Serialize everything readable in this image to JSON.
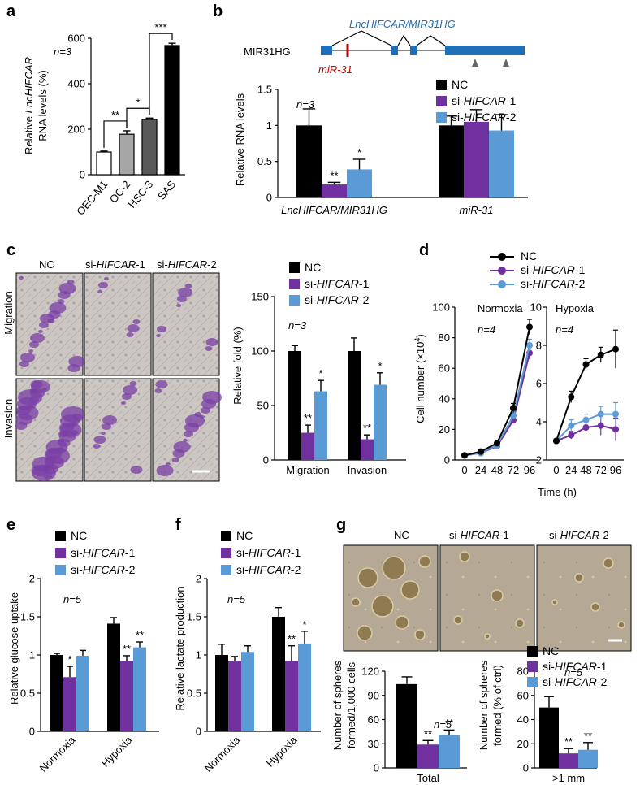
{
  "colors": {
    "black": "#000000",
    "purple": "#7030a0",
    "blue": "#5b9bd5",
    "gray_light": "#a6a6a6",
    "gray_mid": "#595959",
    "gene_blue": "#1f6fb8",
    "mir_red": "#c00000"
  },
  "panels": {
    "a": {
      "letter": "a"
    },
    "b": {
      "letter": "b"
    },
    "c": {
      "letter": "c"
    },
    "d": {
      "letter": "d"
    },
    "e": {
      "letter": "e"
    },
    "f": {
      "letter": "f"
    },
    "g": {
      "letter": "g"
    }
  },
  "legend": {
    "nc": "NC",
    "si1_prefix": "si-",
    "si1_gene": "HIFCAR",
    "si1_suffix": "-1",
    "si2_prefix": "si-",
    "si2_gene": "HIFCAR",
    "si2_suffix": "-2"
  },
  "panel_b": {
    "gene_label": "MIR31HG",
    "transcript_label": "LncHIFCAR/MIR31HG",
    "mir_label": "miR-31"
  },
  "panel_c": {
    "col_nc": "NC",
    "row_migration": "Migration",
    "row_invasion": "Invasion"
  },
  "panel_g": {
    "col_nc": "NC"
  },
  "chart_data": [
    {
      "id": "a",
      "type": "bar",
      "categories": [
        "OEC-M1",
        "OC-2",
        "HSC-3",
        "SAS"
      ],
      "values": [
        100,
        178,
        243,
        568
      ],
      "errors": [
        4,
        15,
        6,
        10
      ],
      "bar_colors": [
        "#ffffff",
        "#a6a6a6",
        "#595959",
        "#000000"
      ],
      "ylabel_line1_pre": "Relative ",
      "ylabel_line1_it": "LncHIFCAR",
      "ylabel_line2": "RNA levels (%)",
      "ylim": [
        0,
        600
      ],
      "yticks": [
        0,
        200,
        400,
        600
      ],
      "annotation": "n=3",
      "significance": [
        "**",
        "*",
        "***"
      ]
    },
    {
      "id": "b",
      "type": "bar",
      "groups": [
        "LncHIFCAR/MIR31HG",
        "miR-31"
      ],
      "series": [
        {
          "name": "NC",
          "values": [
            1.0,
            1.0
          ],
          "errors": [
            0.23,
            0.13
          ]
        },
        {
          "name": "si-HIFCAR-1",
          "values": [
            0.18,
            1.05
          ],
          "errors": [
            0.03,
            0.17
          ]
        },
        {
          "name": "si-HIFCAR-2",
          "values": [
            0.39,
            0.93
          ],
          "errors": [
            0.14,
            0.22
          ]
        }
      ],
      "ylabel": "Relative RNA levels",
      "ylim": [
        0,
        1.5
      ],
      "yticks": [
        0,
        0.5,
        1,
        1.5
      ],
      "ytick_labels": [
        "0",
        "0.5",
        "1",
        "1.5"
      ],
      "annotation": "n=3",
      "significance": [
        "**",
        "*"
      ]
    },
    {
      "id": "c",
      "type": "bar",
      "groups": [
        "Migration",
        "Invasion"
      ],
      "series": [
        {
          "name": "NC",
          "values": [
            100,
            100
          ],
          "errors": [
            5,
            12
          ]
        },
        {
          "name": "si-HIFCAR-1",
          "values": [
            25,
            19
          ],
          "errors": [
            7,
            4
          ]
        },
        {
          "name": "si-HIFCAR-2",
          "values": [
            63,
            69
          ],
          "errors": [
            10,
            11
          ]
        }
      ],
      "ylabel": "Relative fold (%)",
      "ylim": [
        0,
        150
      ],
      "yticks": [
        0,
        50,
        100,
        150
      ],
      "annotation": "n=3",
      "significance": [
        "**",
        "*",
        "**",
        "*"
      ]
    },
    {
      "id": "d",
      "type": "line",
      "x": [
        0,
        24,
        48,
        72,
        96
      ],
      "xticks": [
        "0",
        "24",
        "48",
        "72",
        "96"
      ],
      "xlabel": "Time (h)",
      "ylabel_pre": "Cell number (×10",
      "ylabel_sup": "4",
      "ylabel_post": ")",
      "subplots": [
        {
          "title": "Normoxia",
          "annotation": "n=4",
          "ylim": [
            0,
            100
          ],
          "yticks": [
            0,
            20,
            40,
            60,
            80,
            100
          ],
          "series": [
            {
              "name": "NC",
              "values": [
                3,
                5.5,
                11,
                34,
                87
              ],
              "errors": [
                0.5,
                1,
                1.5,
                3,
                5
              ]
            },
            {
              "name": "si-HIFCAR-1",
              "values": [
                3,
                4.5,
                9,
                26,
                70
              ],
              "errors": [
                0.5,
                1,
                1.5,
                2,
                4
              ]
            },
            {
              "name": "si-HIFCAR-2",
              "values": [
                3,
                4.5,
                9.5,
                29,
                75
              ],
              "errors": [
                0.5,
                1,
                1.5,
                2,
                4
              ]
            }
          ]
        },
        {
          "title": "Hypoxia",
          "annotation": "n=4",
          "ylim": [
            2,
            10
          ],
          "yticks": [
            2,
            4,
            6,
            8,
            10
          ],
          "series": [
            {
              "name": "NC",
              "values": [
                3,
                5.3,
                7.0,
                7.5,
                7.8
              ],
              "errors": [
                0.1,
                0.3,
                0.3,
                0.4,
                1.0
              ]
            },
            {
              "name": "si-HIFCAR-1",
              "values": [
                3,
                3.3,
                3.7,
                3.8,
                3.6
              ],
              "errors": [
                0.1,
                0.2,
                0.3,
                0.5,
                0.6
              ]
            },
            {
              "name": "si-HIFCAR-2",
              "values": [
                3,
                3.8,
                4.1,
                4.4,
                4.4
              ],
              "errors": [
                0.1,
                0.3,
                0.3,
                0.4,
                0.6
              ]
            }
          ]
        }
      ]
    },
    {
      "id": "e",
      "type": "bar",
      "groups": [
        "Normoxia",
        "Hypoxia"
      ],
      "series": [
        {
          "name": "NC",
          "values": [
            1.0,
            1.41
          ],
          "errors": [
            0.02,
            0.08
          ]
        },
        {
          "name": "si-HIFCAR-1",
          "values": [
            0.71,
            0.92
          ],
          "errors": [
            0.14,
            0.07
          ]
        },
        {
          "name": "si-HIFCAR-2",
          "values": [
            0.99,
            1.1
          ],
          "errors": [
            0.07,
            0.07
          ]
        }
      ],
      "ylabel": "Relative glucose uptake",
      "ylim": [
        0,
        2
      ],
      "yticks": [
        0,
        0.5,
        1,
        1.5,
        2
      ],
      "ytick_labels": [
        "0",
        "0.5",
        "1",
        "1.5",
        "2"
      ],
      "annotation": "n=5",
      "significance": [
        "*",
        "**",
        "**"
      ]
    },
    {
      "id": "f",
      "type": "bar",
      "groups": [
        "Normoxia",
        "Hypoxia"
      ],
      "series": [
        {
          "name": "NC",
          "values": [
            1.0,
            1.5
          ],
          "errors": [
            0.14,
            0.12
          ]
        },
        {
          "name": "si-HIFCAR-1",
          "values": [
            0.92,
            0.92
          ],
          "errors": [
            0.06,
            0.2
          ]
        },
        {
          "name": "si-HIFCAR-2",
          "values": [
            1.04,
            1.15
          ],
          "errors": [
            0.08,
            0.16
          ]
        }
      ],
      "ylabel": "Relative lactate production",
      "ylim": [
        0,
        2
      ],
      "yticks": [
        0,
        0.5,
        1,
        1.5,
        2
      ],
      "ytick_labels": [
        "0",
        "0.5",
        "1",
        "1.5",
        "2"
      ],
      "annotation": "n=5",
      "significance": [
        "**",
        "*"
      ]
    },
    {
      "id": "g_total",
      "type": "bar",
      "groups": [
        "Total"
      ],
      "series": [
        {
          "name": "NC",
          "values": [
            104
          ],
          "errors": [
            9
          ]
        },
        {
          "name": "si-HIFCAR-1",
          "values": [
            29
          ],
          "errors": [
            5
          ]
        },
        {
          "name": "si-HIFCAR-2",
          "values": [
            41
          ],
          "errors": [
            6
          ]
        }
      ],
      "ylabel_line1": "Number of spheres",
      "ylabel_line2": "formed/1,000 cells",
      "ylim": [
        0,
        120
      ],
      "yticks": [
        0,
        30,
        60,
        90,
        120
      ],
      "annotation": "n=5",
      "significance": [
        "**",
        "**"
      ]
    },
    {
      "id": "g_1mm",
      "type": "bar",
      "groups": [
        ">1 mm"
      ],
      "series": [
        {
          "name": "NC",
          "values": [
            50
          ],
          "errors": [
            9
          ]
        },
        {
          "name": "si-HIFCAR-1",
          "values": [
            12
          ],
          "errors": [
            4
          ]
        },
        {
          "name": "si-HIFCAR-2",
          "values": [
            15
          ],
          "errors": [
            6
          ]
        }
      ],
      "ylabel_line1": "Number of spheres",
      "ylabel_line2": "formed (% of ctrl)",
      "ylim": [
        0,
        80
      ],
      "yticks": [
        0,
        20,
        40,
        60,
        80
      ],
      "annotation": "n=5",
      "significance": [
        "**",
        "**"
      ]
    }
  ]
}
